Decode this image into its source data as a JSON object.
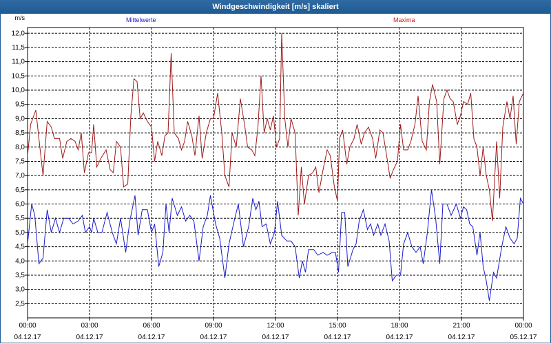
{
  "window": {
    "title": "Windgeschwindigkeit [m/s] skaliert"
  },
  "chart_data": {
    "type": "line",
    "title": "Windgeschwindigkeit [m/s] skaliert",
    "ylabel": "m/s",
    "ylim": [
      2.0,
      12.2
    ],
    "yticks": [
      "2,5",
      "3,0",
      "3,5",
      "4,0",
      "4,5",
      "5,0",
      "5,5",
      "6,0",
      "6,5",
      "7,0",
      "7,5",
      "8,0",
      "8,5",
      "9,0",
      "9,5",
      "10,0",
      "10,5",
      "11,0",
      "11,5",
      "12,0"
    ],
    "xticks": [
      {
        "time": "00:00",
        "date": "04.12.17"
      },
      {
        "time": "03:00",
        "date": "04.12.17"
      },
      {
        "time": "06:00",
        "date": "04.12.17"
      },
      {
        "time": "09:00",
        "date": "04.12.17"
      },
      {
        "time": "12:00",
        "date": "04.12.17"
      },
      {
        "time": "15:00",
        "date": "04.12.17"
      },
      {
        "time": "18:00",
        "date": "04.12.17"
      },
      {
        "time": "21:00",
        "date": "04.12.17"
      },
      {
        "time": "00:00",
        "date": "05.12.17"
      }
    ],
    "x_hours_range": [
      0,
      24
    ],
    "grid": true,
    "series": [
      {
        "name": "Mittelwerte",
        "color": "#1a1acc",
        "points": [
          [
            0.0,
            4.6
          ],
          [
            0.2,
            6.0
          ],
          [
            0.35,
            5.6
          ],
          [
            0.55,
            3.9
          ],
          [
            0.75,
            4.1
          ],
          [
            0.95,
            5.8
          ],
          [
            1.15,
            5.0
          ],
          [
            1.35,
            5.5
          ],
          [
            1.55,
            5.0
          ],
          [
            1.75,
            5.5
          ],
          [
            2.0,
            5.5
          ],
          [
            2.2,
            5.3
          ],
          [
            2.45,
            5.4
          ],
          [
            2.65,
            5.6
          ],
          [
            2.8,
            5.0
          ],
          [
            3.0,
            5.2
          ],
          [
            3.1,
            5.0
          ],
          [
            3.2,
            5.5
          ],
          [
            3.4,
            5.0
          ],
          [
            3.6,
            5.0
          ],
          [
            3.85,
            5.7
          ],
          [
            4.1,
            5.0
          ],
          [
            4.3,
            4.6
          ],
          [
            4.5,
            5.5
          ],
          [
            4.75,
            4.3
          ],
          [
            4.95,
            5.4
          ],
          [
            5.2,
            6.3
          ],
          [
            5.35,
            4.9
          ],
          [
            5.55,
            5.8
          ],
          [
            5.8,
            5.8
          ],
          [
            6.0,
            5.0
          ],
          [
            6.15,
            5.3
          ],
          [
            6.35,
            3.8
          ],
          [
            6.55,
            4.3
          ],
          [
            6.7,
            6.0
          ],
          [
            6.85,
            5.0
          ],
          [
            7.0,
            6.2
          ],
          [
            7.25,
            5.6
          ],
          [
            7.45,
            5.9
          ],
          [
            7.65,
            5.4
          ],
          [
            7.85,
            5.6
          ],
          [
            8.05,
            5.4
          ],
          [
            8.3,
            4.0
          ],
          [
            8.5,
            5.2
          ],
          [
            8.7,
            5.6
          ],
          [
            8.85,
            6.3
          ],
          [
            9.1,
            5.3
          ],
          [
            9.3,
            4.8
          ],
          [
            9.55,
            3.4
          ],
          [
            9.75,
            4.6
          ],
          [
            10.0,
            5.4
          ],
          [
            10.2,
            6.0
          ],
          [
            10.45,
            4.5
          ],
          [
            10.7,
            5.2
          ],
          [
            10.9,
            6.2
          ],
          [
            11.05,
            5.8
          ],
          [
            11.2,
            6.1
          ],
          [
            11.35,
            5.2
          ],
          [
            11.55,
            5.3
          ],
          [
            11.75,
            4.6
          ],
          [
            11.95,
            5.0
          ],
          [
            12.1,
            6.1
          ],
          [
            12.3,
            4.9
          ],
          [
            12.55,
            4.7
          ],
          [
            12.75,
            4.7
          ],
          [
            12.95,
            4.5
          ],
          [
            13.15,
            3.4
          ],
          [
            13.3,
            4.0
          ],
          [
            13.45,
            3.6
          ],
          [
            13.6,
            4.4
          ],
          [
            13.85,
            4.4
          ],
          [
            14.05,
            4.2
          ],
          [
            14.3,
            4.3
          ],
          [
            14.5,
            4.2
          ],
          [
            14.75,
            4.3
          ],
          [
            14.9,
            4.3
          ],
          [
            15.05,
            3.6
          ],
          [
            15.2,
            5.7
          ],
          [
            15.35,
            5.7
          ],
          [
            15.5,
            3.8
          ],
          [
            15.75,
            4.4
          ],
          [
            15.9,
            4.6
          ],
          [
            16.05,
            5.4
          ],
          [
            16.25,
            5.8
          ],
          [
            16.45,
            5.1
          ],
          [
            16.6,
            5.3
          ],
          [
            16.75,
            4.9
          ],
          [
            16.95,
            5.3
          ],
          [
            17.1,
            4.9
          ],
          [
            17.3,
            5.3
          ],
          [
            17.5,
            4.7
          ],
          [
            17.65,
            3.3
          ],
          [
            17.85,
            3.5
          ],
          [
            18.05,
            3.5
          ],
          [
            18.2,
            4.6
          ],
          [
            18.4,
            5.0
          ],
          [
            18.6,
            4.5
          ],
          [
            18.8,
            4.3
          ],
          [
            19.0,
            4.5
          ],
          [
            19.15,
            3.9
          ],
          [
            19.35,
            5.0
          ],
          [
            19.55,
            6.5
          ],
          [
            19.75,
            5.5
          ],
          [
            19.95,
            3.9
          ],
          [
            20.1,
            6.0
          ],
          [
            20.3,
            6.0
          ],
          [
            20.5,
            5.6
          ],
          [
            20.75,
            6.0
          ],
          [
            20.95,
            5.5
          ],
          [
            21.1,
            5.9
          ],
          [
            21.25,
            5.8
          ],
          [
            21.4,
            5.3
          ],
          [
            21.55,
            5.2
          ],
          [
            21.75,
            4.2
          ],
          [
            21.9,
            5.0
          ],
          [
            22.05,
            3.8
          ],
          [
            22.2,
            3.3
          ],
          [
            22.35,
            2.6
          ],
          [
            22.55,
            3.6
          ],
          [
            22.7,
            3.4
          ],
          [
            22.95,
            4.5
          ],
          [
            23.15,
            5.2
          ],
          [
            23.35,
            4.8
          ],
          [
            23.55,
            4.6
          ],
          [
            23.7,
            4.8
          ],
          [
            23.85,
            6.2
          ],
          [
            24.0,
            6.0
          ]
        ]
      },
      {
        "name": "Maxima",
        "color": "#a01818",
        "points": [
          [
            0.0,
            7.7
          ],
          [
            0.15,
            8.8
          ],
          [
            0.4,
            9.3
          ],
          [
            0.55,
            8.3
          ],
          [
            0.75,
            7.0
          ],
          [
            0.95,
            8.9
          ],
          [
            1.15,
            8.7
          ],
          [
            1.3,
            8.3
          ],
          [
            1.55,
            8.3
          ],
          [
            1.7,
            7.6
          ],
          [
            1.9,
            8.2
          ],
          [
            2.1,
            8.3
          ],
          [
            2.3,
            8.2
          ],
          [
            2.45,
            7.9
          ],
          [
            2.6,
            8.5
          ],
          [
            2.75,
            7.1
          ],
          [
            2.95,
            7.8
          ],
          [
            3.1,
            7.8
          ],
          [
            3.2,
            8.8
          ],
          [
            3.35,
            7.3
          ],
          [
            3.55,
            7.6
          ],
          [
            3.8,
            7.9
          ],
          [
            4.0,
            7.2
          ],
          [
            4.15,
            7.1
          ],
          [
            4.3,
            8.2
          ],
          [
            4.5,
            8.0
          ],
          [
            4.65,
            6.6
          ],
          [
            4.85,
            6.7
          ],
          [
            5.0,
            9.1
          ],
          [
            5.15,
            10.4
          ],
          [
            5.3,
            10.3
          ],
          [
            5.45,
            9.0
          ],
          [
            5.6,
            9.2
          ],
          [
            5.8,
            8.9
          ],
          [
            6.0,
            8.7
          ],
          [
            6.15,
            7.5
          ],
          [
            6.3,
            8.2
          ],
          [
            6.5,
            7.7
          ],
          [
            6.65,
            8.4
          ],
          [
            6.8,
            8.5
          ],
          [
            6.95,
            11.3
          ],
          [
            7.1,
            8.5
          ],
          [
            7.3,
            8.3
          ],
          [
            7.45,
            7.9
          ],
          [
            7.6,
            8.2
          ],
          [
            7.75,
            8.9
          ],
          [
            7.95,
            8.4
          ],
          [
            8.1,
            7.7
          ],
          [
            8.3,
            9.1
          ],
          [
            8.45,
            7.6
          ],
          [
            8.65,
            8.5
          ],
          [
            8.85,
            9.0
          ],
          [
            9.0,
            9.0
          ],
          [
            9.2,
            9.9
          ],
          [
            9.4,
            8.5
          ],
          [
            9.55,
            7.0
          ],
          [
            9.75,
            6.6
          ],
          [
            9.9,
            8.5
          ],
          [
            10.1,
            8.0
          ],
          [
            10.3,
            9.7
          ],
          [
            10.5,
            8.8
          ],
          [
            10.65,
            8.0
          ],
          [
            10.85,
            7.9
          ],
          [
            11.0,
            7.7
          ],
          [
            11.15,
            8.7
          ],
          [
            11.3,
            10.5
          ],
          [
            11.45,
            8.5
          ],
          [
            11.6,
            9.0
          ],
          [
            11.75,
            8.6
          ],
          [
            11.9,
            9.1
          ],
          [
            12.05,
            8.0
          ],
          [
            12.2,
            8.3
          ],
          [
            12.3,
            12.0
          ],
          [
            12.45,
            9.0
          ],
          [
            12.6,
            8.0
          ],
          [
            12.75,
            9.0
          ],
          [
            12.95,
            8.5
          ],
          [
            13.1,
            5.6
          ],
          [
            13.25,
            7.3
          ],
          [
            13.4,
            6.0
          ],
          [
            13.6,
            7.0
          ],
          [
            13.8,
            7.1
          ],
          [
            13.95,
            7.3
          ],
          [
            14.1,
            6.4
          ],
          [
            14.3,
            7.2
          ],
          [
            14.5,
            7.9
          ],
          [
            14.65,
            7.7
          ],
          [
            14.85,
            6.6
          ],
          [
            15.0,
            6.1
          ],
          [
            15.1,
            8.3
          ],
          [
            15.25,
            8.6
          ],
          [
            15.45,
            7.4
          ],
          [
            15.6,
            8.0
          ],
          [
            15.8,
            8.3
          ],
          [
            15.95,
            8.8
          ],
          [
            16.15,
            8.1
          ],
          [
            16.3,
            8.5
          ],
          [
            16.5,
            8.7
          ],
          [
            16.7,
            8.3
          ],
          [
            16.85,
            7.6
          ],
          [
            17.05,
            8.6
          ],
          [
            17.2,
            8.5
          ],
          [
            17.4,
            7.6
          ],
          [
            17.55,
            6.9
          ],
          [
            17.7,
            7.2
          ],
          [
            17.9,
            7.5
          ],
          [
            18.05,
            8.8
          ],
          [
            18.2,
            7.9
          ],
          [
            18.4,
            7.9
          ],
          [
            18.55,
            8.2
          ],
          [
            18.75,
            8.8
          ],
          [
            18.9,
            9.8
          ],
          [
            19.1,
            8.2
          ],
          [
            19.3,
            7.9
          ],
          [
            19.45,
            9.6
          ],
          [
            19.6,
            10.2
          ],
          [
            19.8,
            9.6
          ],
          [
            19.95,
            7.4
          ],
          [
            20.15,
            9.7
          ],
          [
            20.3,
            10.0
          ],
          [
            20.45,
            9.7
          ],
          [
            20.6,
            9.6
          ],
          [
            20.8,
            8.8
          ],
          [
            20.95,
            9.1
          ],
          [
            21.1,
            9.6
          ],
          [
            21.3,
            9.5
          ],
          [
            21.45,
            9.9
          ],
          [
            21.6,
            8.3
          ],
          [
            21.75,
            8.0
          ],
          [
            21.9,
            7.0
          ],
          [
            22.05,
            8.0
          ],
          [
            22.2,
            7.0
          ],
          [
            22.35,
            6.5
          ],
          [
            22.5,
            5.4
          ],
          [
            22.7,
            8.2
          ],
          [
            22.85,
            6.2
          ],
          [
            23.0,
            8.7
          ],
          [
            23.2,
            9.6
          ],
          [
            23.35,
            9.0
          ],
          [
            23.5,
            9.8
          ],
          [
            23.65,
            8.1
          ],
          [
            23.8,
            9.6
          ],
          [
            24.0,
            9.9
          ]
        ]
      }
    ]
  }
}
